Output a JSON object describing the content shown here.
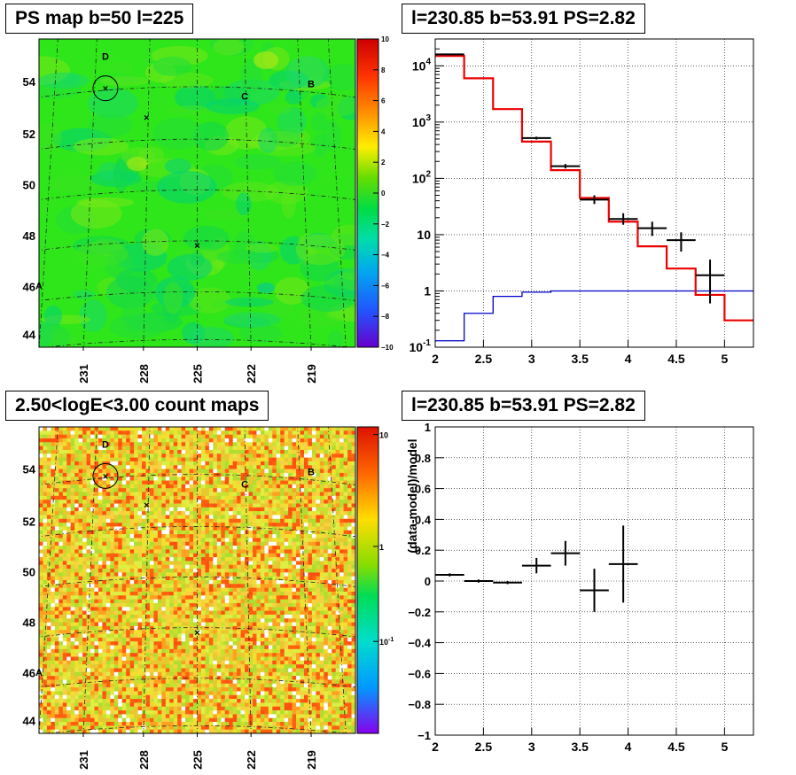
{
  "panels": {
    "top_left_title": "PS map b=50 l=225",
    "top_right_title": "l=230.85 b=53.91 PS=2.82",
    "bottom_left_title": "2.50<logE<3.00 count maps",
    "bottom_right_title": "l=230.85 b=53.91 PS=2.82"
  },
  "chart_data": [
    {
      "type": "heatmap",
      "id": "ps-map",
      "title": "PS map b=50 l=225",
      "x_tick_labels": [
        "231",
        "228",
        "225",
        "222",
        "219"
      ],
      "y_tick_labels": [
        "54",
        "52",
        "50",
        "48",
        "46",
        "44"
      ],
      "colorbar": {
        "range": [
          -10,
          10
        ],
        "ticks": [
          "10",
          "8",
          "6",
          "4",
          "2",
          "0",
          "−2",
          "−4",
          "−6",
          "−8",
          "−10"
        ]
      },
      "markers": [
        "D",
        "C",
        "B",
        "A"
      ]
    },
    {
      "type": "line",
      "id": "spectrum",
      "title": "l=230.85 b=53.91 PS=2.82",
      "xlim": [
        2,
        5.3
      ],
      "ylim": [
        0.1,
        30000
      ],
      "ylog": true,
      "x_tick_labels": [
        "2",
        "2.5",
        "3",
        "3.5",
        "4",
        "4.5",
        "5"
      ],
      "y_tick_labels": [
        "10^4",
        "10^3",
        "10^2",
        "10",
        "1",
        "10^-1"
      ],
      "grid": true,
      "bin_edges": [
        2.0,
        2.3,
        2.6,
        2.9,
        3.2,
        3.5,
        3.8,
        4.1,
        4.4,
        4.7,
        5.0,
        5.3
      ],
      "model_red": [
        15000,
        6000,
        1700,
        450,
        140,
        45,
        17,
        6.2,
        2.5,
        0.85,
        0.3
      ],
      "model_blue": [
        0.13,
        0.4,
        0.8,
        0.95,
        1.0,
        1.0,
        1.0,
        1.0,
        1.0,
        1.0,
        1.0
      ],
      "data_points": [
        {
          "x": 2.15,
          "y": 16000,
          "xerr": 0.15,
          "ylo": 15500,
          "yhi": 16500
        },
        {
          "x": 3.05,
          "y": 520,
          "xerr": 0.15,
          "ylo": 490,
          "yhi": 550
        },
        {
          "x": 3.35,
          "y": 165,
          "xerr": 0.15,
          "ylo": 150,
          "yhi": 180
        },
        {
          "x": 3.65,
          "y": 42,
          "xerr": 0.15,
          "ylo": 35,
          "yhi": 50
        },
        {
          "x": 3.95,
          "y": 19,
          "xerr": 0.15,
          "ylo": 15,
          "yhi": 24
        },
        {
          "x": 4.25,
          "y": 13,
          "xerr": 0.15,
          "ylo": 9.5,
          "yhi": 17
        },
        {
          "x": 4.55,
          "y": 8,
          "xerr": 0.15,
          "ylo": 5,
          "yhi": 11
        },
        {
          "x": 4.85,
          "y": 1.9,
          "xerr": 0.15,
          "ylo": 0.6,
          "yhi": 3.6
        }
      ]
    },
    {
      "type": "heatmap",
      "id": "count-map",
      "title": "2.50<logE<3.00 count maps",
      "x_tick_labels": [
        "231",
        "228",
        "225",
        "222",
        "219"
      ],
      "y_tick_labels": [
        "54",
        "52",
        "50",
        "48",
        "46",
        "44"
      ],
      "colorbar": {
        "scale": "log",
        "ticks": [
          "10",
          "1",
          "10^-1"
        ]
      },
      "markers": [
        "D",
        "C",
        "B",
        "A"
      ]
    },
    {
      "type": "scatter",
      "id": "residuals",
      "title": "l=230.85 b=53.91 PS=2.82",
      "ylabel": "(data-model)/model",
      "xlim": [
        2,
        5.3
      ],
      "ylim": [
        -1,
        1
      ],
      "x_tick_labels": [
        "2",
        "2.5",
        "3",
        "3.5",
        "4",
        "4.5",
        "5"
      ],
      "y_tick_labels": [
        "1",
        "0.8",
        "0.6",
        "0.4",
        "0.2",
        "0",
        "−0.2",
        "−0.4",
        "−0.6",
        "−0.8",
        "−1"
      ],
      "grid": true,
      "points": [
        {
          "x": 2.15,
          "y": 0.04,
          "xerr": 0.15,
          "yerr": 0.01
        },
        {
          "x": 2.45,
          "y": 0.0,
          "xerr": 0.15,
          "yerr": 0.01
        },
        {
          "x": 2.75,
          "y": -0.01,
          "xerr": 0.15,
          "yerr": 0.01
        },
        {
          "x": 3.05,
          "y": 0.1,
          "xerr": 0.15,
          "yerr": 0.05
        },
        {
          "x": 3.35,
          "y": 0.18,
          "xerr": 0.15,
          "yerr": 0.08
        },
        {
          "x": 3.65,
          "y": -0.06,
          "xerr": 0.15,
          "yerr": 0.14
        },
        {
          "x": 3.95,
          "y": 0.11,
          "xerr": 0.15,
          "yerr": 0.25
        }
      ]
    }
  ]
}
